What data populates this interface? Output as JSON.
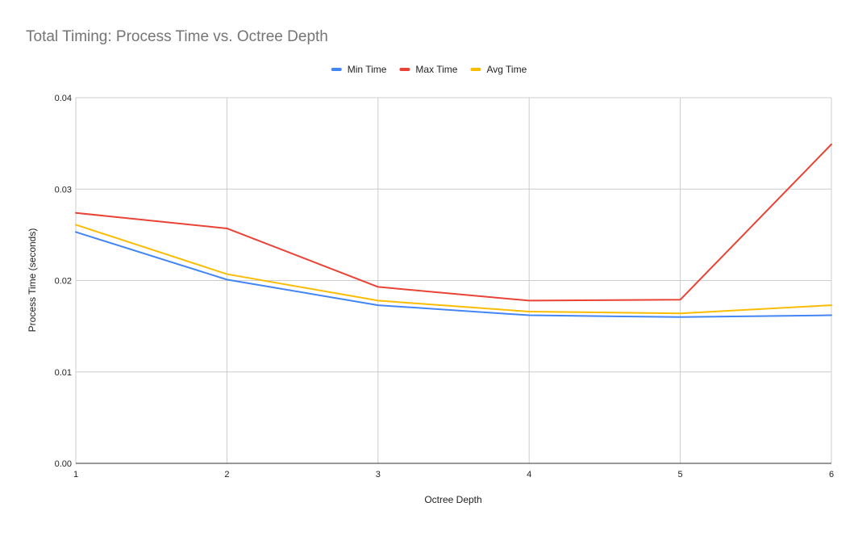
{
  "chart_data": {
    "type": "line",
    "title": "Total Timing: Process Time vs. Octree Depth",
    "xlabel": "Octree Depth",
    "ylabel": "Process Time (seconds)",
    "x": [
      1,
      2,
      3,
      4,
      5,
      6
    ],
    "x_tick_labels": [
      "1",
      "2",
      "3",
      "4",
      "5",
      "6"
    ],
    "ylim": [
      0,
      0.04
    ],
    "y_ticks": [
      0,
      0.01,
      0.02,
      0.03,
      0.04
    ],
    "y_tick_labels": [
      "0.00",
      "0.01",
      "0.02",
      "0.03",
      "0.04"
    ],
    "grid": true,
    "legend_position": "top",
    "series": [
      {
        "name": "Min Time",
        "color": "#4285f4",
        "values": [
          0.0253,
          0.0201,
          0.0173,
          0.0162,
          0.016,
          0.0162
        ]
      },
      {
        "name": "Max Time",
        "color": "#ea4335",
        "values": [
          0.0274,
          0.0257,
          0.0193,
          0.0178,
          0.0179,
          0.0349
        ]
      },
      {
        "name": "Avg Time",
        "color": "#fbbc04",
        "values": [
          0.0261,
          0.0207,
          0.0178,
          0.0166,
          0.0164,
          0.0173
        ]
      }
    ]
  }
}
